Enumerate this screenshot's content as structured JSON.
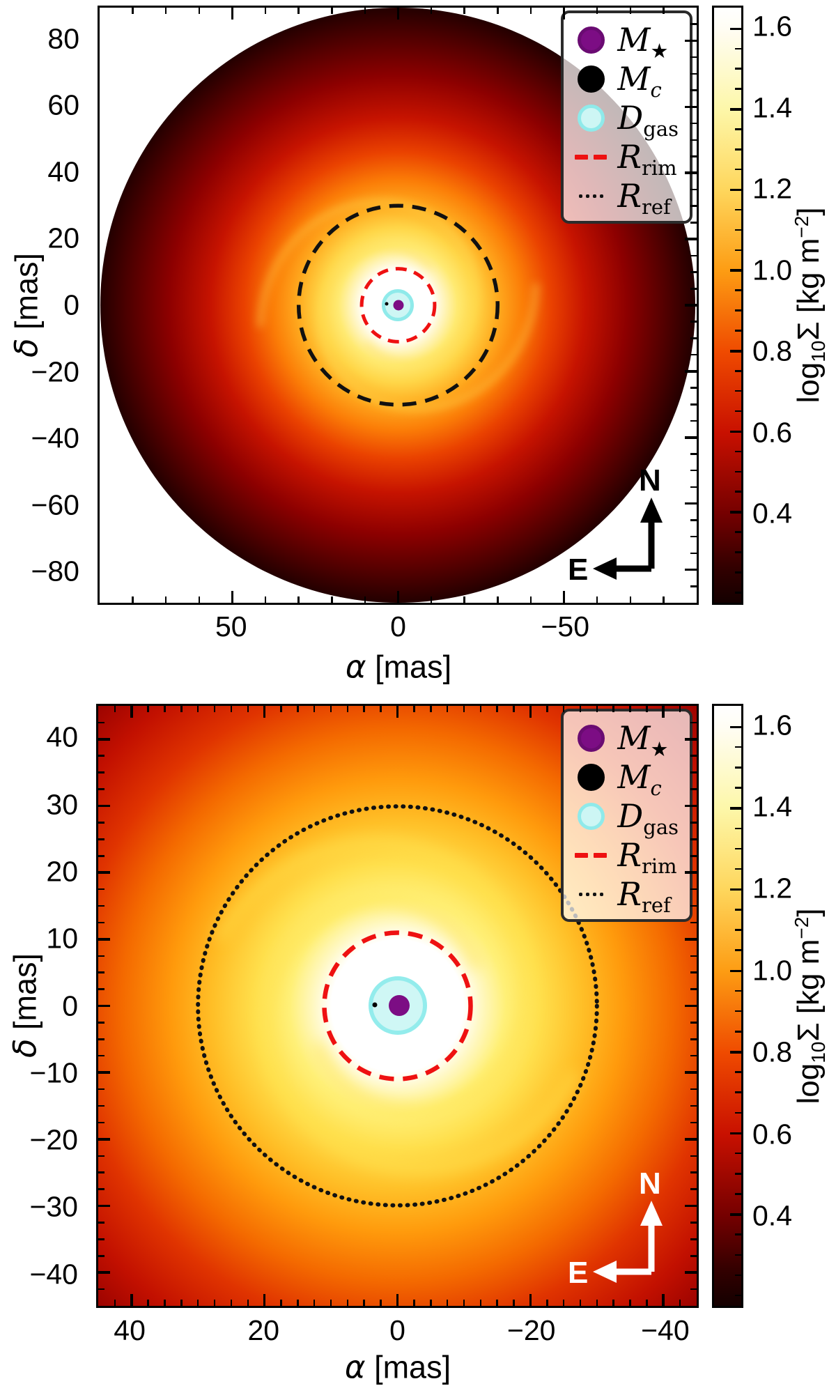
{
  "figure": {
    "description": "Two-panel simulated surface-density map of a circumstellar disk with spiral arms"
  },
  "colorbar": {
    "title": {
      "log": "log",
      "sub": "10",
      "sigma": "Σ",
      "unit_open": " [kg m",
      "sup": "−2",
      "unit_close": "]"
    },
    "vmin": 0.175,
    "vmax": 1.652,
    "ticks": [
      {
        "v": 1.6,
        "label": "1.6"
      },
      {
        "v": 1.4,
        "label": "1.4"
      },
      {
        "v": 1.2,
        "label": "1.2"
      },
      {
        "v": 1.0,
        "label": "1.0"
      },
      {
        "v": 0.8,
        "label": "0.8"
      },
      {
        "v": 0.6,
        "label": "0.6"
      },
      {
        "v": 0.4,
        "label": "0.4"
      }
    ],
    "minor_step": 0.05
  },
  "legend": {
    "items": [
      {
        "main": "M",
        "sub": "★",
        "sub_italic": false,
        "marker": "circle",
        "fill": "#7c0d84",
        "stroke": "#6a0b72"
      },
      {
        "main": "M",
        "sub": "c",
        "sub_italic": true,
        "marker": "circle",
        "fill": "#000000",
        "stroke": "#000000"
      },
      {
        "main": "D",
        "sub": "gas",
        "sub_italic": false,
        "marker": "circle",
        "fill": "#cdf6f4",
        "stroke": "#8feaea"
      },
      {
        "main": "R",
        "sub": "rim",
        "sub_italic": false,
        "marker": "dashes",
        "color": "#ee1111"
      },
      {
        "main": "R",
        "sub": "ref",
        "sub_italic": false,
        "marker": "dots",
        "color": "#111111"
      }
    ]
  },
  "panels": [
    {
      "name": "full-disk-view",
      "x_symbol": "α",
      "x_unit": " [mas]",
      "y_symbol": "δ",
      "y_unit": " [mas]",
      "xlim": [
        90,
        -90
      ],
      "ylim": [
        90,
        -90
      ],
      "xticks": [
        {
          "v": 50,
          "label": "50"
        },
        {
          "v": 0,
          "label": "0"
        },
        {
          "v": -50,
          "label": "−50"
        }
      ],
      "yticks": [
        {
          "v": 80,
          "label": "80"
        },
        {
          "v": 60,
          "label": "60"
        },
        {
          "v": 40,
          "label": "40"
        },
        {
          "v": 20,
          "label": "20"
        },
        {
          "v": 0,
          "label": "0"
        },
        {
          "v": -20,
          "label": "−20"
        },
        {
          "v": -40,
          "label": "−40"
        },
        {
          "v": -60,
          "label": "−60"
        },
        {
          "v": -80,
          "label": "−80"
        }
      ],
      "minor_x": 10,
      "minor_y": 5,
      "compass": {
        "north": "N",
        "east": "E",
        "color": "#000000"
      },
      "overlays": {
        "r_rim_mas": 11,
        "rim_color": "#ee1111",
        "r_ref_mas": 30,
        "ref_color": "#111111",
        "ref_linestyle": "dashed",
        "d_gas_radius_mas": 3.7,
        "m_star_mas": [
          0,
          0
        ],
        "m_c_alpha_mas": 3.4
      }
    },
    {
      "name": "inner-zoom-view",
      "x_symbol": "α",
      "x_unit": " [mas]",
      "y_symbol": "δ",
      "y_unit": " [mas]",
      "xlim": [
        45,
        -45
      ],
      "ylim": [
        45,
        -45
      ],
      "xticks": [
        {
          "v": 40,
          "label": "40"
        },
        {
          "v": 20,
          "label": "20"
        },
        {
          "v": 0,
          "label": "0"
        },
        {
          "v": -20,
          "label": "−20"
        },
        {
          "v": -40,
          "label": "−40"
        }
      ],
      "yticks": [
        {
          "v": 40,
          "label": "40"
        },
        {
          "v": 30,
          "label": "30"
        },
        {
          "v": 20,
          "label": "20"
        },
        {
          "v": 10,
          "label": "10"
        },
        {
          "v": 0,
          "label": "0"
        },
        {
          "v": -10,
          "label": "−10"
        },
        {
          "v": -20,
          "label": "−20"
        },
        {
          "v": -30,
          "label": "−30"
        },
        {
          "v": -40,
          "label": "−40"
        }
      ],
      "minor_x": 2.5,
      "minor_y": 2.5,
      "compass": {
        "north": "N",
        "east": "E",
        "color": "#ffffff"
      },
      "overlays": {
        "r_rim_mas": 11,
        "rim_color": "#ee1111",
        "r_ref_mas": 30,
        "ref_color": "#111111",
        "ref_linestyle": "dotted",
        "d_gas_radius_mas": 3.7,
        "m_star_mas": [
          0,
          0
        ],
        "m_c_alpha_mas": 3.4
      }
    }
  ],
  "chart_data": {
    "type": "heatmap",
    "quantity": "log10 of dust/gas surface density Sigma in kg m^-2",
    "colormap": "afmhot-like (black → dark red → red → orange → yellow → white)",
    "colorbar_tick_values": [
      1.6,
      1.4,
      1.2,
      1.0,
      0.8,
      0.6,
      0.4
    ],
    "colorbar_range_approx": [
      0.18,
      1.65
    ],
    "panels": [
      {
        "title": "full disk view",
        "xlabel": "α [mas]",
        "xrange_left_to_right": [
          90,
          -90
        ],
        "ylabel": "δ [mas]",
        "yrange_bottom_to_top": [
          -90,
          90
        ],
        "disk_outer_radius_mas": 90,
        "features": {
          "inner_cavity": "saturated white region inside R_rim",
          "R_rim_mas": 11,
          "R_rim_style": "red dashed circle",
          "R_ref_mas": 30,
          "R_ref_style": "black dashed circle",
          "D_gas_radius_mas": 3.7,
          "D_gas_style": "cyan filled circle at origin",
          "M_star_position_mas": [
            0,
            0
          ],
          "M_star_style": "purple dot",
          "M_c_position_mas": [
            3.4,
            0
          ],
          "M_c_style": "small black dot east of star",
          "morphology": "two-armed yellow-orange spiral winding outward to the dark disk edge"
        }
      },
      {
        "title": "inner-region zoom",
        "xlabel": "α [mas]",
        "xrange_left_to_right": [
          45,
          -45
        ],
        "ylabel": "δ [mas]",
        "yrange_bottom_to_top": [
          -45,
          45
        ],
        "features": {
          "R_rim_mas": 11,
          "R_rim_style": "red dashed circle",
          "R_ref_mas": 30,
          "R_ref_style": "black dotted circle",
          "D_gas_radius_mas": 3.7,
          "M_star_position_mas": [
            0,
            0
          ],
          "M_c_position_mas": [
            3.4,
            0
          ],
          "morphology": "bright spiral arms in yellow around white inner cavity, field saturated red at edges"
        }
      }
    ]
  }
}
